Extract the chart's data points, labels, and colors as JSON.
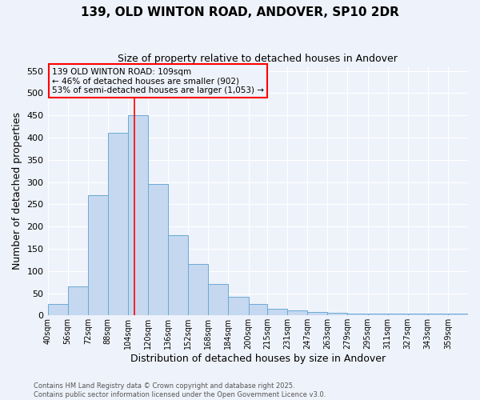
{
  "title1": "139, OLD WINTON ROAD, ANDOVER, SP10 2DR",
  "title2": "Size of property relative to detached houses in Andover",
  "xlabel": "Distribution of detached houses by size in Andover",
  "ylabel": "Number of detached properties",
  "bar_color": "#c5d8f0",
  "bar_edge_color": "#6aaad4",
  "bin_labels": [
    "40sqm",
    "56sqm",
    "72sqm",
    "88sqm",
    "104sqm",
    "120sqm",
    "136sqm",
    "152sqm",
    "168sqm",
    "184sqm",
    "200sqm",
    "215sqm",
    "231sqm",
    "247sqm",
    "263sqm",
    "279sqm",
    "295sqm",
    "311sqm",
    "327sqm",
    "343sqm",
    "359sqm"
  ],
  "bar_heights": [
    25,
    65,
    270,
    410,
    450,
    295,
    180,
    115,
    70,
    42,
    25,
    15,
    12,
    7,
    6,
    5,
    4,
    5,
    5,
    5,
    4
  ],
  "bin_edges": [
    40,
    56,
    72,
    88,
    104,
    120,
    136,
    152,
    168,
    184,
    200,
    215,
    231,
    247,
    263,
    279,
    295,
    311,
    327,
    343,
    359
  ],
  "red_line_x": 109,
  "annotation_lines": [
    "139 OLD WINTON ROAD: 109sqm",
    "← 46% of detached houses are smaller (902)",
    "53% of semi-detached houses are larger (1,053) →"
  ],
  "ylim": [
    0,
    560
  ],
  "yticks": [
    0,
    50,
    100,
    150,
    200,
    250,
    300,
    350,
    400,
    450,
    500,
    550
  ],
  "footer1": "Contains HM Land Registry data © Crown copyright and database right 2025.",
  "footer2": "Contains public sector information licensed under the Open Government Licence v3.0.",
  "bg_color": "#eef2fa"
}
